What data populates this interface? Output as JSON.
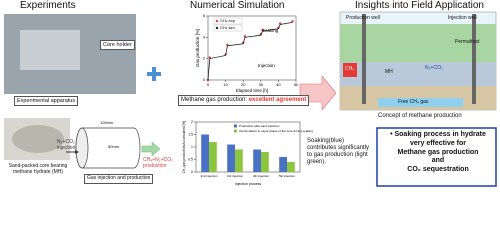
{
  "sections": {
    "experiments": "Experiments",
    "simulation": "Numerical Simulation",
    "field": "Insights into Field Application"
  },
  "experiments": {
    "core_holder": "Core holder",
    "apparatus": "Experimental apparatus",
    "core": "Sand-packed core bearing methane hydrate (MH)",
    "length": "100mm",
    "diameter": "50mm",
    "injection": "N₂+CO₂ injection",
    "production": "CH₄+N₂+CO₂ production",
    "process": "Gas injection and production"
  },
  "line_chart": {
    "type": "line",
    "ylabel": "Gas production [%]",
    "xlabel": "Elapsed time [h]",
    "x": [
      0,
      1,
      10,
      11,
      20,
      21,
      30,
      31,
      40,
      41,
      48
    ],
    "series": [
      {
        "name": "CH₄ exp",
        "color": "#e53935",
        "mode": "markers",
        "values": [
          0,
          2.1,
          2.4,
          3.3,
          3.5,
          4.1,
          4.3,
          4.7,
          4.9,
          5.3,
          5.5
        ]
      },
      {
        "name": "CH₄ sim",
        "color": "#222222",
        "mode": "lines",
        "values": [
          0,
          2,
          2.3,
          3.2,
          3.4,
          4.0,
          4.2,
          4.6,
          4.8,
          5.2,
          5.4
        ]
      }
    ],
    "annotations": [
      "Soaking",
      "Injection"
    ],
    "xlim": [
      0,
      50
    ],
    "xticks": [
      0,
      10,
      20,
      30,
      40,
      50
    ],
    "ylim": [
      0,
      6
    ],
    "yticks": [
      0,
      2,
      4,
      6
    ]
  },
  "agreement": {
    "text": "Methane gas production:",
    "highlight": "excellent agreement"
  },
  "bar_chart": {
    "type": "bar",
    "ylabel": "CH₄ gas production/Accumulated [%]",
    "xlabel": "Injection process",
    "categories": [
      "2nd injection",
      "3rd injection",
      "4th injection",
      "5th injection"
    ],
    "series": [
      {
        "name": "Production after each injection",
        "color": "#4a72c4",
        "values": [
          1.5,
          1.1,
          0.9,
          0.6
        ]
      },
      {
        "name": "Accumulation in vapor phase of the core during soaking",
        "color": "#8cc63f",
        "values": [
          1.2,
          0.9,
          0.8,
          0.4
        ]
      }
    ],
    "ylim": [
      0,
      2
    ],
    "yticks": [
      0,
      0.5,
      1,
      1.5,
      2
    ]
  },
  "soaking_note": "Soaking(blue) contributes significantly to gas production (light green).",
  "field": {
    "production_well": "Production well",
    "injection_well": "Injection well",
    "permafrost": "Permafrost",
    "ch4": "CH₄",
    "mh": "MH",
    "injected": "N₂+CO₂",
    "free_gas": "Free CH₄ gas",
    "caption": "Concept of methane production"
  },
  "conclusion": {
    "line1": "Soaking process in hydrate very effective for",
    "line2": "Methane gas production",
    "line3": "and",
    "line4": "CO₂ sequestration"
  }
}
